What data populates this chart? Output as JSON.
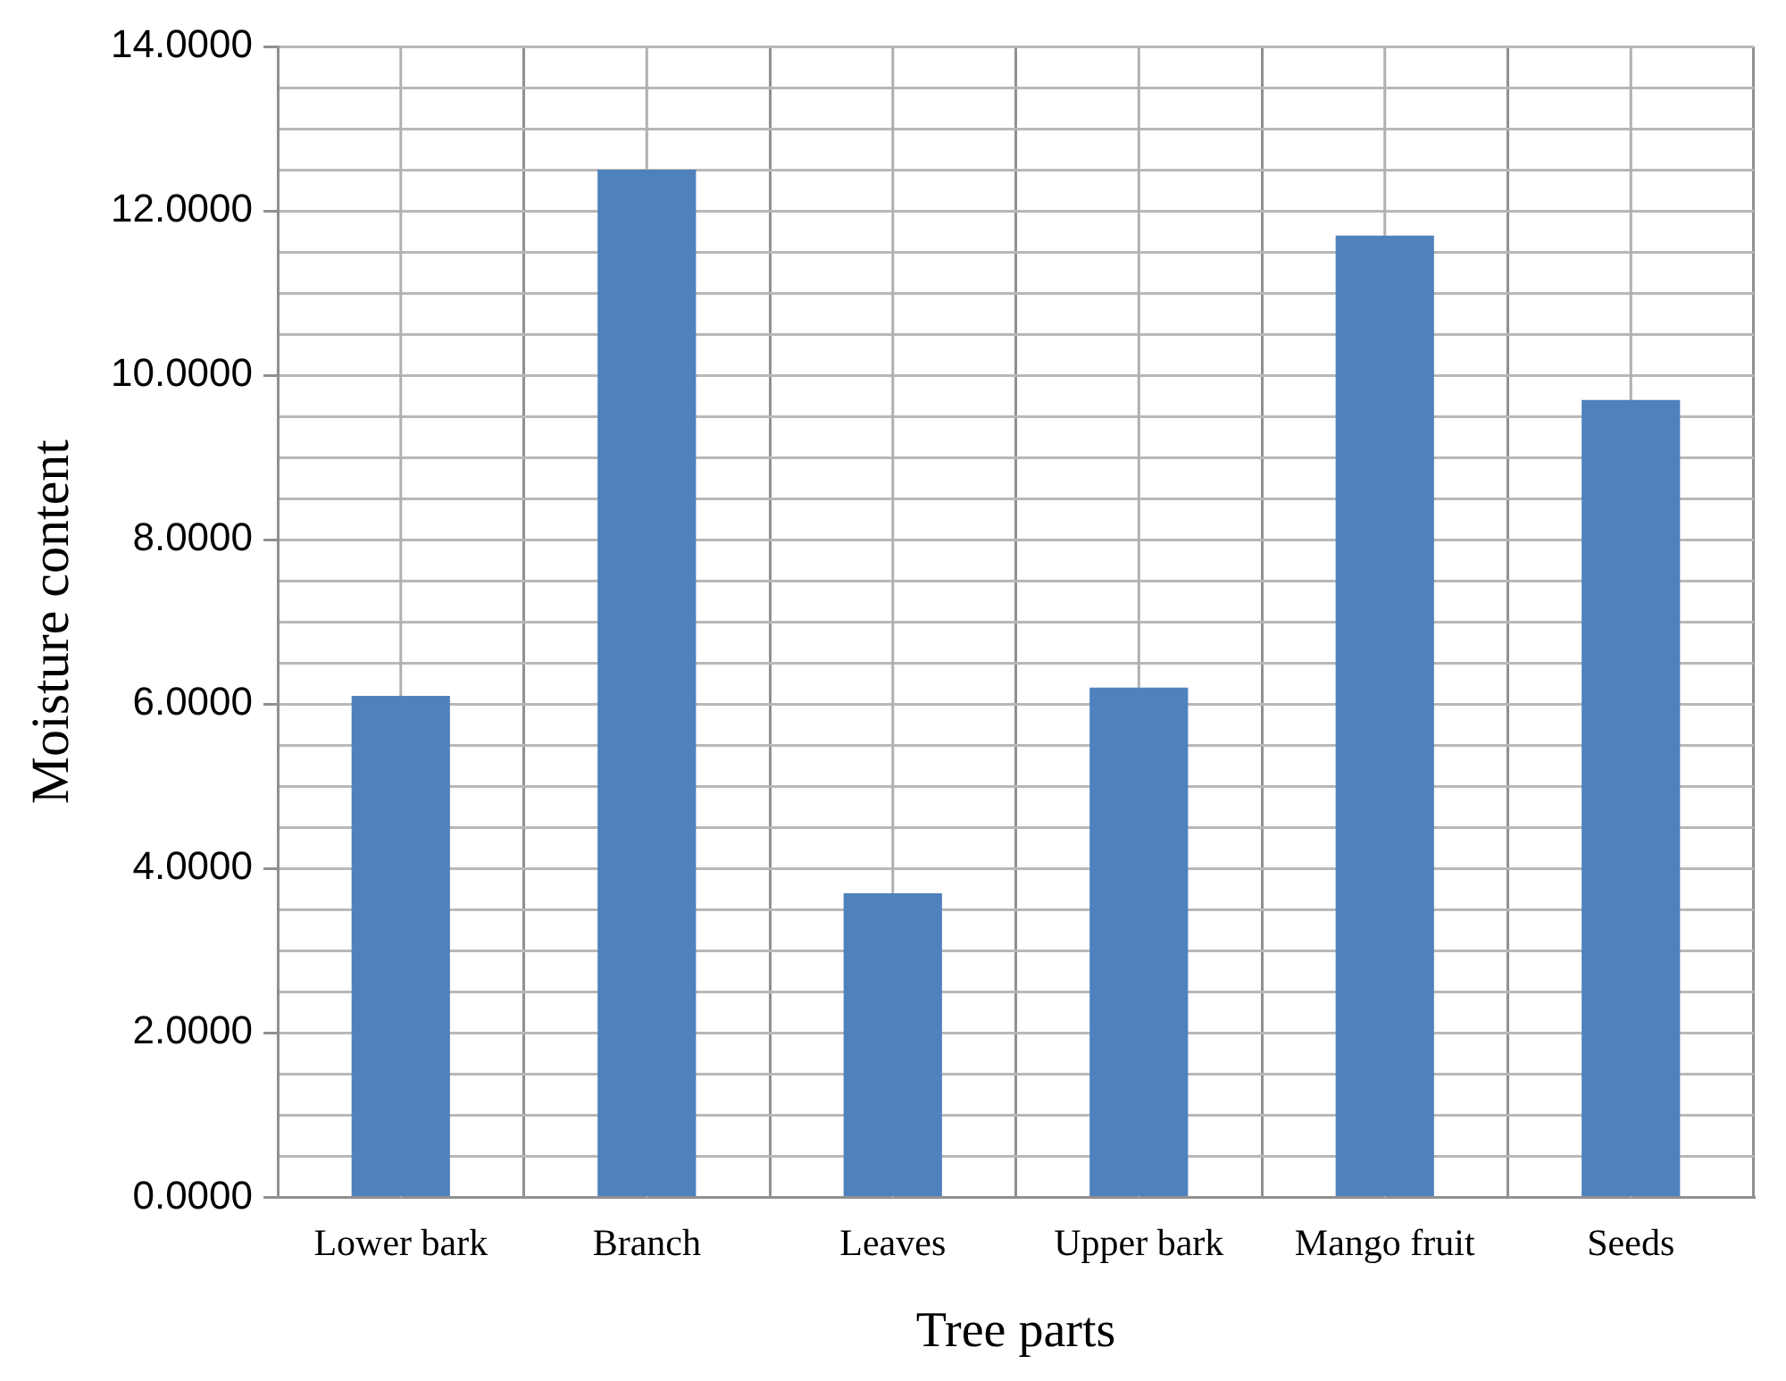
{
  "chart_data": {
    "type": "bar",
    "xlabel": "Tree parts",
    "ylabel": "Moisture content",
    "categories": [
      "Lower bark",
      "Branch",
      "Leaves",
      "Upper bark",
      "Mango fruit",
      "Seeds"
    ],
    "values": [
      6.1,
      12.5,
      3.7,
      6.2,
      11.7,
      9.7
    ],
    "color": "#4f81bd",
    "ylim": [
      0,
      14
    ],
    "yticks": [
      {
        "value": 0,
        "label": "0.0000"
      },
      {
        "value": 0.5,
        "label": null
      },
      {
        "value": 1,
        "label": null
      },
      {
        "value": 1.5,
        "label": null
      },
      {
        "value": 2,
        "label": "2.0000"
      },
      {
        "value": 2.5,
        "label": null
      },
      {
        "value": 3,
        "label": null
      },
      {
        "value": 3.5,
        "label": null
      },
      {
        "value": 4,
        "label": "4.0000"
      },
      {
        "value": 4.5,
        "label": null
      },
      {
        "value": 5,
        "label": null
      },
      {
        "value": 5.5,
        "label": null
      },
      {
        "value": 6,
        "label": "6.0000"
      },
      {
        "value": 6.5,
        "label": null
      },
      {
        "value": 7,
        "label": null
      },
      {
        "value": 7.5,
        "label": null
      },
      {
        "value": 8,
        "label": "8.0000"
      },
      {
        "value": 8.5,
        "label": null
      },
      {
        "value": 9,
        "label": null
      },
      {
        "value": 9.5,
        "label": null
      },
      {
        "value": 10,
        "label": "10.0000"
      },
      {
        "value": 10.5,
        "label": null
      },
      {
        "value": 11,
        "label": null
      },
      {
        "value": 11.5,
        "label": null
      },
      {
        "value": 12,
        "label": "12.0000"
      },
      {
        "value": 12.5,
        "label": null
      },
      {
        "value": 13,
        "label": null
      },
      {
        "value": 13.5,
        "label": null
      },
      {
        "value": 14,
        "label": "14.0000"
      }
    ],
    "grid": true,
    "legend": false
  }
}
